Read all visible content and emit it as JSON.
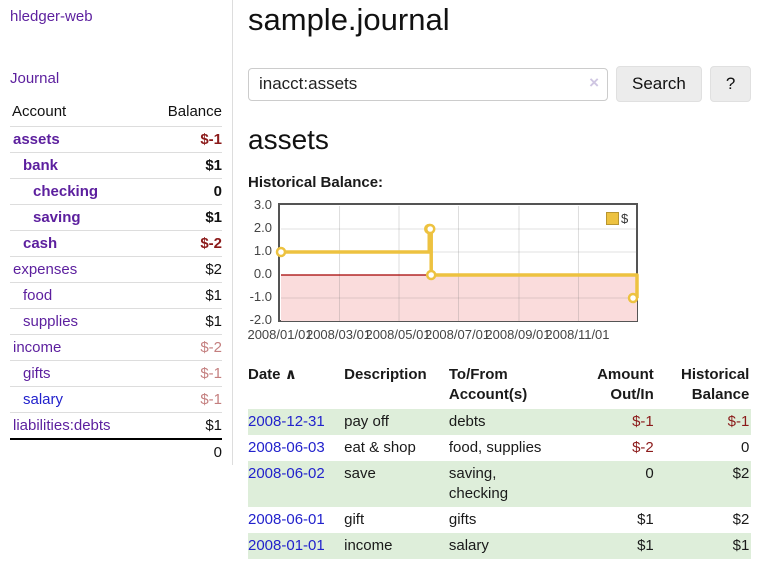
{
  "app": {
    "brand": "hledger-web",
    "nav_journal": "Journal"
  },
  "sidebar": {
    "accounts_table": {
      "col_account": "Account",
      "col_balance": "Balance",
      "rows": [
        {
          "name": "assets",
          "balance": "$-1"
        },
        {
          "name": "bank",
          "balance": "$1"
        },
        {
          "name": "checking",
          "balance": "0"
        },
        {
          "name": "saving",
          "balance": "$1"
        },
        {
          "name": "cash",
          "balance": "$-2"
        },
        {
          "name": "expenses",
          "balance": "$2"
        },
        {
          "name": "food",
          "balance": "$1"
        },
        {
          "name": "supplies",
          "balance": "$1"
        },
        {
          "name": "income",
          "balance": "$-2"
        },
        {
          "name": "gifts",
          "balance": "$-1"
        },
        {
          "name": "salary",
          "balance": "$-1"
        },
        {
          "name": "liabilities:debts",
          "balance": "$1"
        }
      ],
      "total": "0"
    }
  },
  "header": {
    "title": "sample.journal"
  },
  "search": {
    "query": "inacct:assets",
    "clear_label": "×",
    "button_label": "Search",
    "help_label": "?"
  },
  "account_page": {
    "heading": "assets",
    "chart_label": "Historical Balance:"
  },
  "chart_data": {
    "type": "line",
    "title": "Historical Balance:",
    "series": [
      {
        "name": "$",
        "color": "#edc240",
        "step": true,
        "points": [
          [
            "2008-01-01",
            1
          ],
          [
            "2008-06-01",
            2
          ],
          [
            "2008-06-02",
            2
          ],
          [
            "2008-06-03",
            0
          ],
          [
            "2008-12-31",
            -1
          ]
        ]
      }
    ],
    "x_range": [
      "2008-01-01",
      "2008-12-31"
    ],
    "ylim": [
      -2,
      3
    ],
    "y_ticks": [
      "3.0",
      "2.0",
      "1.0",
      "0.0",
      "-1.0",
      "-2.0"
    ],
    "x_ticks": [
      "2008/01/01",
      "2008/03/01",
      "2008/05/01",
      "2008/07/01",
      "2008/09/01",
      "2008/11/01"
    ],
    "legend": {
      "label": "$",
      "position": "top-right"
    },
    "grid": true,
    "negative_region_color": "#fadcdc",
    "zero_line_color": "#a40000"
  },
  "register_table": {
    "headers": {
      "date": "Date",
      "sort_indicator": "∧",
      "description": "Description",
      "tofrom_line1": "To/From",
      "tofrom_line2": "Account(s)",
      "amount_line1": "Amount",
      "amount_line2": "Out/In",
      "balance_line1": "Historical",
      "balance_line2": "Balance"
    },
    "rows": [
      {
        "date": "2008-12-31",
        "description": "pay off",
        "accounts": "debts",
        "amount": "$-1",
        "balance": "$-1"
      },
      {
        "date": "2008-06-03",
        "description": "eat & shop",
        "accounts": "food, supplies",
        "amount": "$-2",
        "balance": "0"
      },
      {
        "date": "2008-06-02",
        "description": "save",
        "accounts": "saving,\nchecking",
        "amount": "0",
        "balance": "$2"
      },
      {
        "date": "2008-06-01",
        "description": "gift",
        "accounts": "gifts",
        "amount": "$1",
        "balance": "$2"
      },
      {
        "date": "2008-01-01",
        "description": "income",
        "accounts": "salary",
        "amount": "$1",
        "balance": "$1"
      }
    ]
  },
  "colors": {
    "link_purple": "#5c1f9e",
    "link_blue": "#2222cc",
    "negative_strong": "#8b1a1a",
    "negative_soft": "#c47f7f",
    "row_stripe_green": "#deeeda",
    "chart_line_gold": "#edc240"
  }
}
